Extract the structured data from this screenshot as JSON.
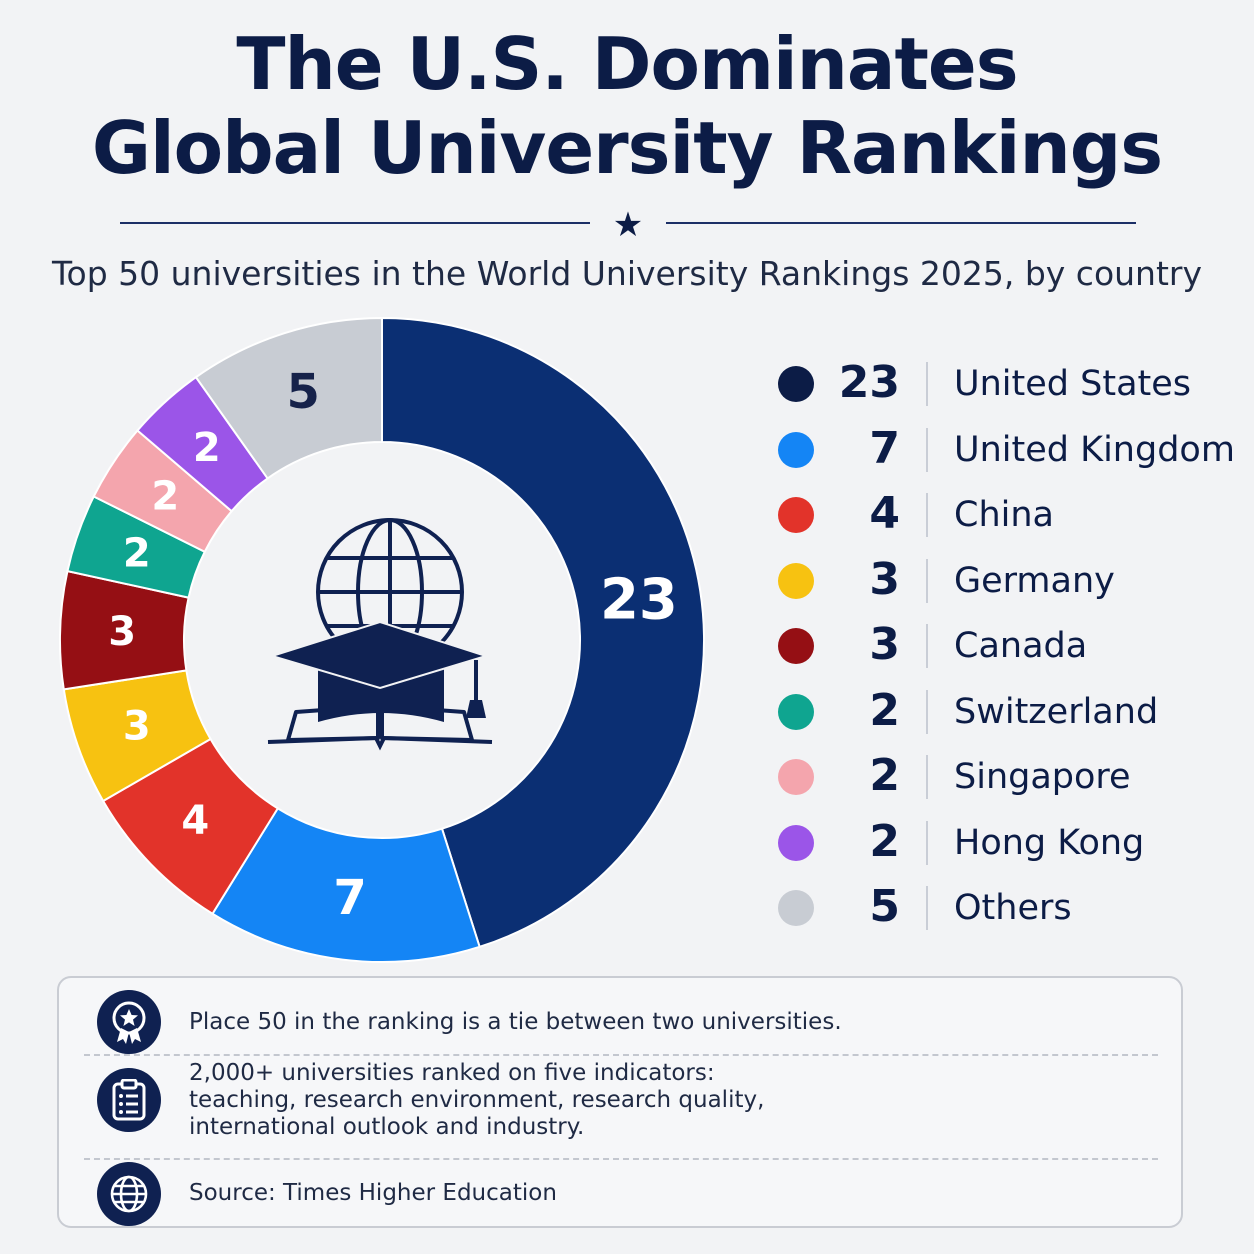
{
  "title": {
    "line1": "The U.S. Dominates",
    "line2": "Global University Rankings"
  },
  "subtitle": "Top 50 universities in the World University Rankings 2025, by country",
  "icons": {
    "divider": "star-icon",
    "center": "graduation-cap-book-globe-icon",
    "note1": "award-medal-icon",
    "note2": "clipboard-list-icon",
    "note3": "globe-icon"
  },
  "chart_data": {
    "type": "pie",
    "style": "donut",
    "title": "Top 50 universities in the World University Rankings 2025, by country",
    "total": 50,
    "categories": [
      "United States",
      "United Kingdom",
      "China",
      "Germany",
      "Canada",
      "Switzerland",
      "Singapore",
      "Hong Kong",
      "Others"
    ],
    "values": [
      23,
      7,
      4,
      3,
      3,
      2,
      2,
      2,
      5
    ],
    "colors": [
      "#0b2f73",
      "#1485f5",
      "#e2332a",
      "#f7c211",
      "#950f14",
      "#0fa590",
      "#f4a5ad",
      "#9b55e8",
      "#c8ccd3"
    ],
    "label_colors": [
      "#ffffff",
      "#ffffff",
      "#ffffff",
      "#ffffff",
      "#ffffff",
      "#ffffff",
      "#ffffff",
      "#ffffff",
      "#16224a"
    ],
    "legend_placement": "right"
  },
  "legend_items": [
    {
      "value": "23",
      "label": "United States",
      "color": "#0c1c46"
    },
    {
      "value": "7",
      "label": "United Kingdom",
      "color": "#1485f5"
    },
    {
      "value": "4",
      "label": "China",
      "color": "#e2332a"
    },
    {
      "value": "3",
      "label": "Germany",
      "color": "#f7c211"
    },
    {
      "value": "3",
      "label": "Canada",
      "color": "#950f14"
    },
    {
      "value": "2",
      "label": "Switzerland",
      "color": "#0fa590"
    },
    {
      "value": "2",
      "label": "Singapore",
      "color": "#f4a5ad"
    },
    {
      "value": "2",
      "label": "Hong Kong",
      "color": "#9b55e8"
    },
    {
      "value": "5",
      "label": "Others",
      "color": "#c8ccd3"
    }
  ],
  "notes": [
    {
      "lines": [
        "Place 50 in the ranking is a tie between two universities."
      ]
    },
    {
      "lines": [
        "2,000+ universities ranked on five indicators:",
        "teaching, research environment, research quality,",
        "international outlook and industry."
      ]
    },
    {
      "lines": [
        "Source: Times Higher Education"
      ]
    }
  ]
}
